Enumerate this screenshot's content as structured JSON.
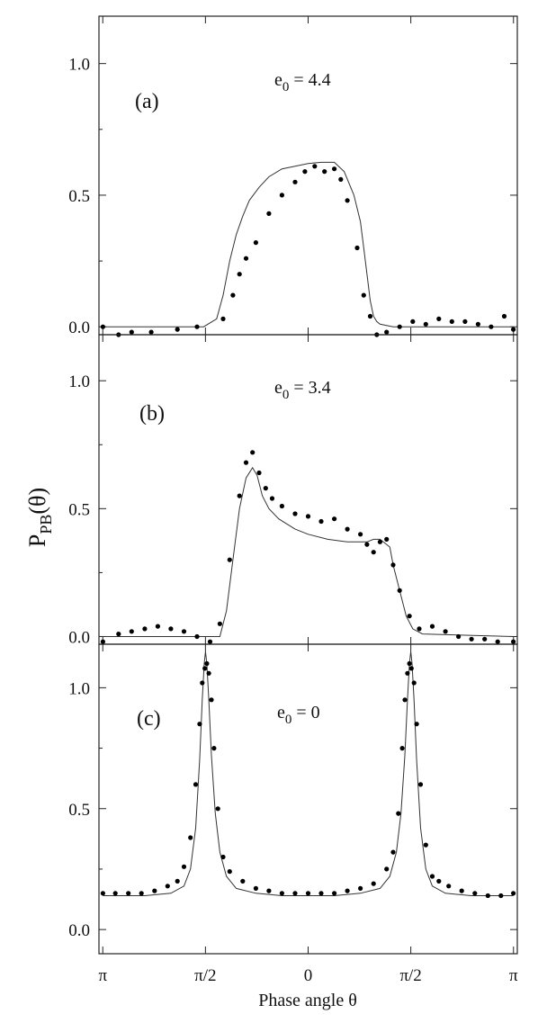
{
  "chart_data": {
    "type": "scatter",
    "xlabel": "Phase angle θ",
    "ylabel": "P",
    "ylabel_sub": "PB",
    "ylabel_arg": "(θ)",
    "x_ticks": [
      {
        "value": -3.14159,
        "label": "π"
      },
      {
        "value": -1.5708,
        "label": "π/2"
      },
      {
        "value": 0,
        "label": "0"
      },
      {
        "value": 1.5708,
        "label": "π/2"
      },
      {
        "value": 3.14159,
        "label": "π"
      }
    ],
    "xlim": [
      -3.2,
      3.2
    ],
    "grid": false,
    "legend": "none",
    "panels": [
      {
        "label": "(a)",
        "param_base": "e",
        "param_sub": "0",
        "param_rest": " = 4.4",
        "ylim": [
          -0.03,
          1.18
        ],
        "y_ticks": [
          {
            "value": 0.0,
            "label": "0.0"
          },
          {
            "value": 0.5,
            "label": "0.5"
          },
          {
            "value": 1.0,
            "label": "1.0"
          }
        ],
        "series": [
          {
            "style": "points",
            "x": [
              -3.14,
              -2.9,
              -2.7,
              -2.4,
              -2.0,
              -1.7,
              -1.3,
              -1.15,
              -1.05,
              -0.95,
              -0.8,
              -0.6,
              -0.4,
              -0.2,
              -0.05,
              0.1,
              0.25,
              0.4,
              0.5,
              0.6,
              0.75,
              0.85,
              0.95,
              1.05,
              1.2,
              1.4,
              1.6,
              1.8,
              2.0,
              2.2,
              2.4,
              2.6,
              2.8,
              3.0,
              3.14
            ],
            "y": [
              0.0,
              -0.03,
              -0.02,
              -0.02,
              -0.01,
              0.0,
              0.03,
              0.12,
              0.2,
              0.26,
              0.32,
              0.43,
              0.5,
              0.55,
              0.59,
              0.61,
              0.59,
              0.6,
              0.56,
              0.48,
              0.3,
              0.12,
              0.04,
              -0.03,
              -0.02,
              0.0,
              0.02,
              0.01,
              0.03,
              0.02,
              0.02,
              0.01,
              0.0,
              0.04,
              -0.01
            ]
          },
          {
            "style": "line",
            "x": [
              -3.14,
              -1.6,
              -1.4,
              -1.3,
              -1.2,
              -1.1,
              -1.0,
              -0.9,
              -0.75,
              -0.6,
              -0.4,
              -0.2,
              0.0,
              0.2,
              0.4,
              0.55,
              0.7,
              0.8,
              0.85,
              0.9,
              0.95,
              1.0,
              1.05,
              1.1,
              1.3,
              3.14
            ],
            "y": [
              0.0,
              0.0,
              0.03,
              0.12,
              0.25,
              0.35,
              0.42,
              0.48,
              0.53,
              0.57,
              0.6,
              0.61,
              0.62,
              0.625,
              0.625,
              0.59,
              0.5,
              0.4,
              0.3,
              0.2,
              0.1,
              0.04,
              0.02,
              0.01,
              0.0,
              0.0
            ]
          }
        ]
      },
      {
        "label": "(b)",
        "param_base": "e",
        "param_sub": "0",
        "param_rest": " = 3.4",
        "ylim": [
          -0.03,
          1.18
        ],
        "y_ticks": [
          {
            "value": 0.0,
            "label": "0.0"
          },
          {
            "value": 0.5,
            "label": "0.5"
          },
          {
            "value": 1.0,
            "label": "1.0"
          }
        ],
        "series": [
          {
            "style": "points",
            "x": [
              -3.14,
              -2.9,
              -2.7,
              -2.5,
              -2.3,
              -2.1,
              -1.9,
              -1.7,
              -1.5,
              -1.35,
              -1.2,
              -1.05,
              -0.95,
              -0.85,
              -0.75,
              -0.65,
              -0.55,
              -0.4,
              -0.2,
              0.0,
              0.2,
              0.4,
              0.6,
              0.8,
              0.9,
              1.0,
              1.1,
              1.2,
              1.3,
              1.4,
              1.55,
              1.7,
              1.9,
              2.1,
              2.3,
              2.5,
              2.7,
              2.9,
              3.14
            ],
            "y": [
              -0.02,
              0.01,
              0.02,
              0.03,
              0.04,
              0.03,
              0.02,
              0.0,
              -0.02,
              0.05,
              0.3,
              0.55,
              0.68,
              0.72,
              0.64,
              0.58,
              0.54,
              0.51,
              0.48,
              0.47,
              0.45,
              0.46,
              0.42,
              0.4,
              0.36,
              0.33,
              0.37,
              0.38,
              0.28,
              0.18,
              0.08,
              0.03,
              0.04,
              0.02,
              0.0,
              -0.01,
              -0.01,
              -0.02,
              -0.02
            ]
          },
          {
            "style": "line",
            "x": [
              -3.14,
              -1.35,
              -1.25,
              -1.15,
              -1.05,
              -0.95,
              -0.85,
              -0.78,
              -0.7,
              -0.6,
              -0.45,
              -0.2,
              0.0,
              0.3,
              0.6,
              0.9,
              1.0,
              1.1,
              1.25,
              1.3,
              1.4,
              1.5,
              1.6,
              1.75,
              3.14
            ],
            "y": [
              0.0,
              0.0,
              0.1,
              0.3,
              0.5,
              0.62,
              0.66,
              0.63,
              0.55,
              0.5,
              0.46,
              0.42,
              0.4,
              0.38,
              0.37,
              0.37,
              0.38,
              0.38,
              0.35,
              0.28,
              0.18,
              0.08,
              0.03,
              0.01,
              0.0
            ]
          }
        ]
      },
      {
        "label": "(c)",
        "param_base": "e",
        "param_sub": "0",
        "param_rest": " = 0",
        "ylim": [
          -0.1,
          1.18
        ],
        "y_ticks": [
          {
            "value": 0.0,
            "label": "0.0"
          },
          {
            "value": 0.5,
            "label": "0.5"
          },
          {
            "value": 1.0,
            "label": "1.0"
          }
        ],
        "series": [
          {
            "style": "points",
            "x": [
              -3.14,
              -2.95,
              -2.75,
              -2.55,
              -2.35,
              -2.15,
              -2.0,
              -1.9,
              -1.8,
              -1.72,
              -1.66,
              -1.62,
              -1.58,
              -1.55,
              -1.52,
              -1.48,
              -1.44,
              -1.38,
              -1.3,
              -1.2,
              -1.0,
              -0.8,
              -0.6,
              -0.4,
              -0.2,
              0.0,
              0.2,
              0.4,
              0.6,
              0.8,
              1.0,
              1.2,
              1.3,
              1.38,
              1.44,
              1.48,
              1.52,
              1.55,
              1.58,
              1.62,
              1.66,
              1.72,
              1.8,
              1.9,
              2.0,
              2.15,
              2.35,
              2.55,
              2.75,
              2.95,
              3.14
            ],
            "y": [
              0.15,
              0.15,
              0.15,
              0.15,
              0.16,
              0.18,
              0.2,
              0.26,
              0.38,
              0.6,
              0.85,
              1.02,
              1.08,
              1.1,
              1.06,
              0.95,
              0.75,
              0.5,
              0.3,
              0.24,
              0.2,
              0.17,
              0.16,
              0.15,
              0.15,
              0.15,
              0.15,
              0.15,
              0.16,
              0.17,
              0.19,
              0.25,
              0.32,
              0.48,
              0.75,
              0.95,
              1.06,
              1.1,
              1.08,
              1.02,
              0.85,
              0.6,
              0.35,
              0.22,
              0.2,
              0.18,
              0.16,
              0.15,
              0.14,
              0.14,
              0.15
            ]
          },
          {
            "style": "line",
            "x": [
              -3.14,
              -2.5,
              -2.1,
              -1.9,
              -1.8,
              -1.72,
              -1.66,
              -1.62,
              -1.59,
              -1.57,
              -1.55,
              -1.52,
              -1.48,
              -1.42,
              -1.35,
              -1.25,
              -1.1,
              -0.8,
              -0.4,
              0.0,
              0.4,
              0.8,
              1.1,
              1.25,
              1.35,
              1.42,
              1.48,
              1.52,
              1.55,
              1.57,
              1.59,
              1.62,
              1.66,
              1.72,
              1.8,
              1.9,
              2.1,
              2.5,
              3.14
            ],
            "y": [
              0.14,
              0.14,
              0.15,
              0.18,
              0.25,
              0.42,
              0.7,
              0.95,
              1.1,
              1.15,
              1.1,
              0.95,
              0.72,
              0.48,
              0.32,
              0.22,
              0.17,
              0.15,
              0.14,
              0.14,
              0.14,
              0.15,
              0.17,
              0.22,
              0.32,
              0.48,
              0.72,
              0.95,
              1.1,
              1.15,
              1.1,
              0.95,
              0.7,
              0.42,
              0.25,
              0.18,
              0.15,
              0.14,
              0.14
            ]
          }
        ]
      }
    ]
  }
}
